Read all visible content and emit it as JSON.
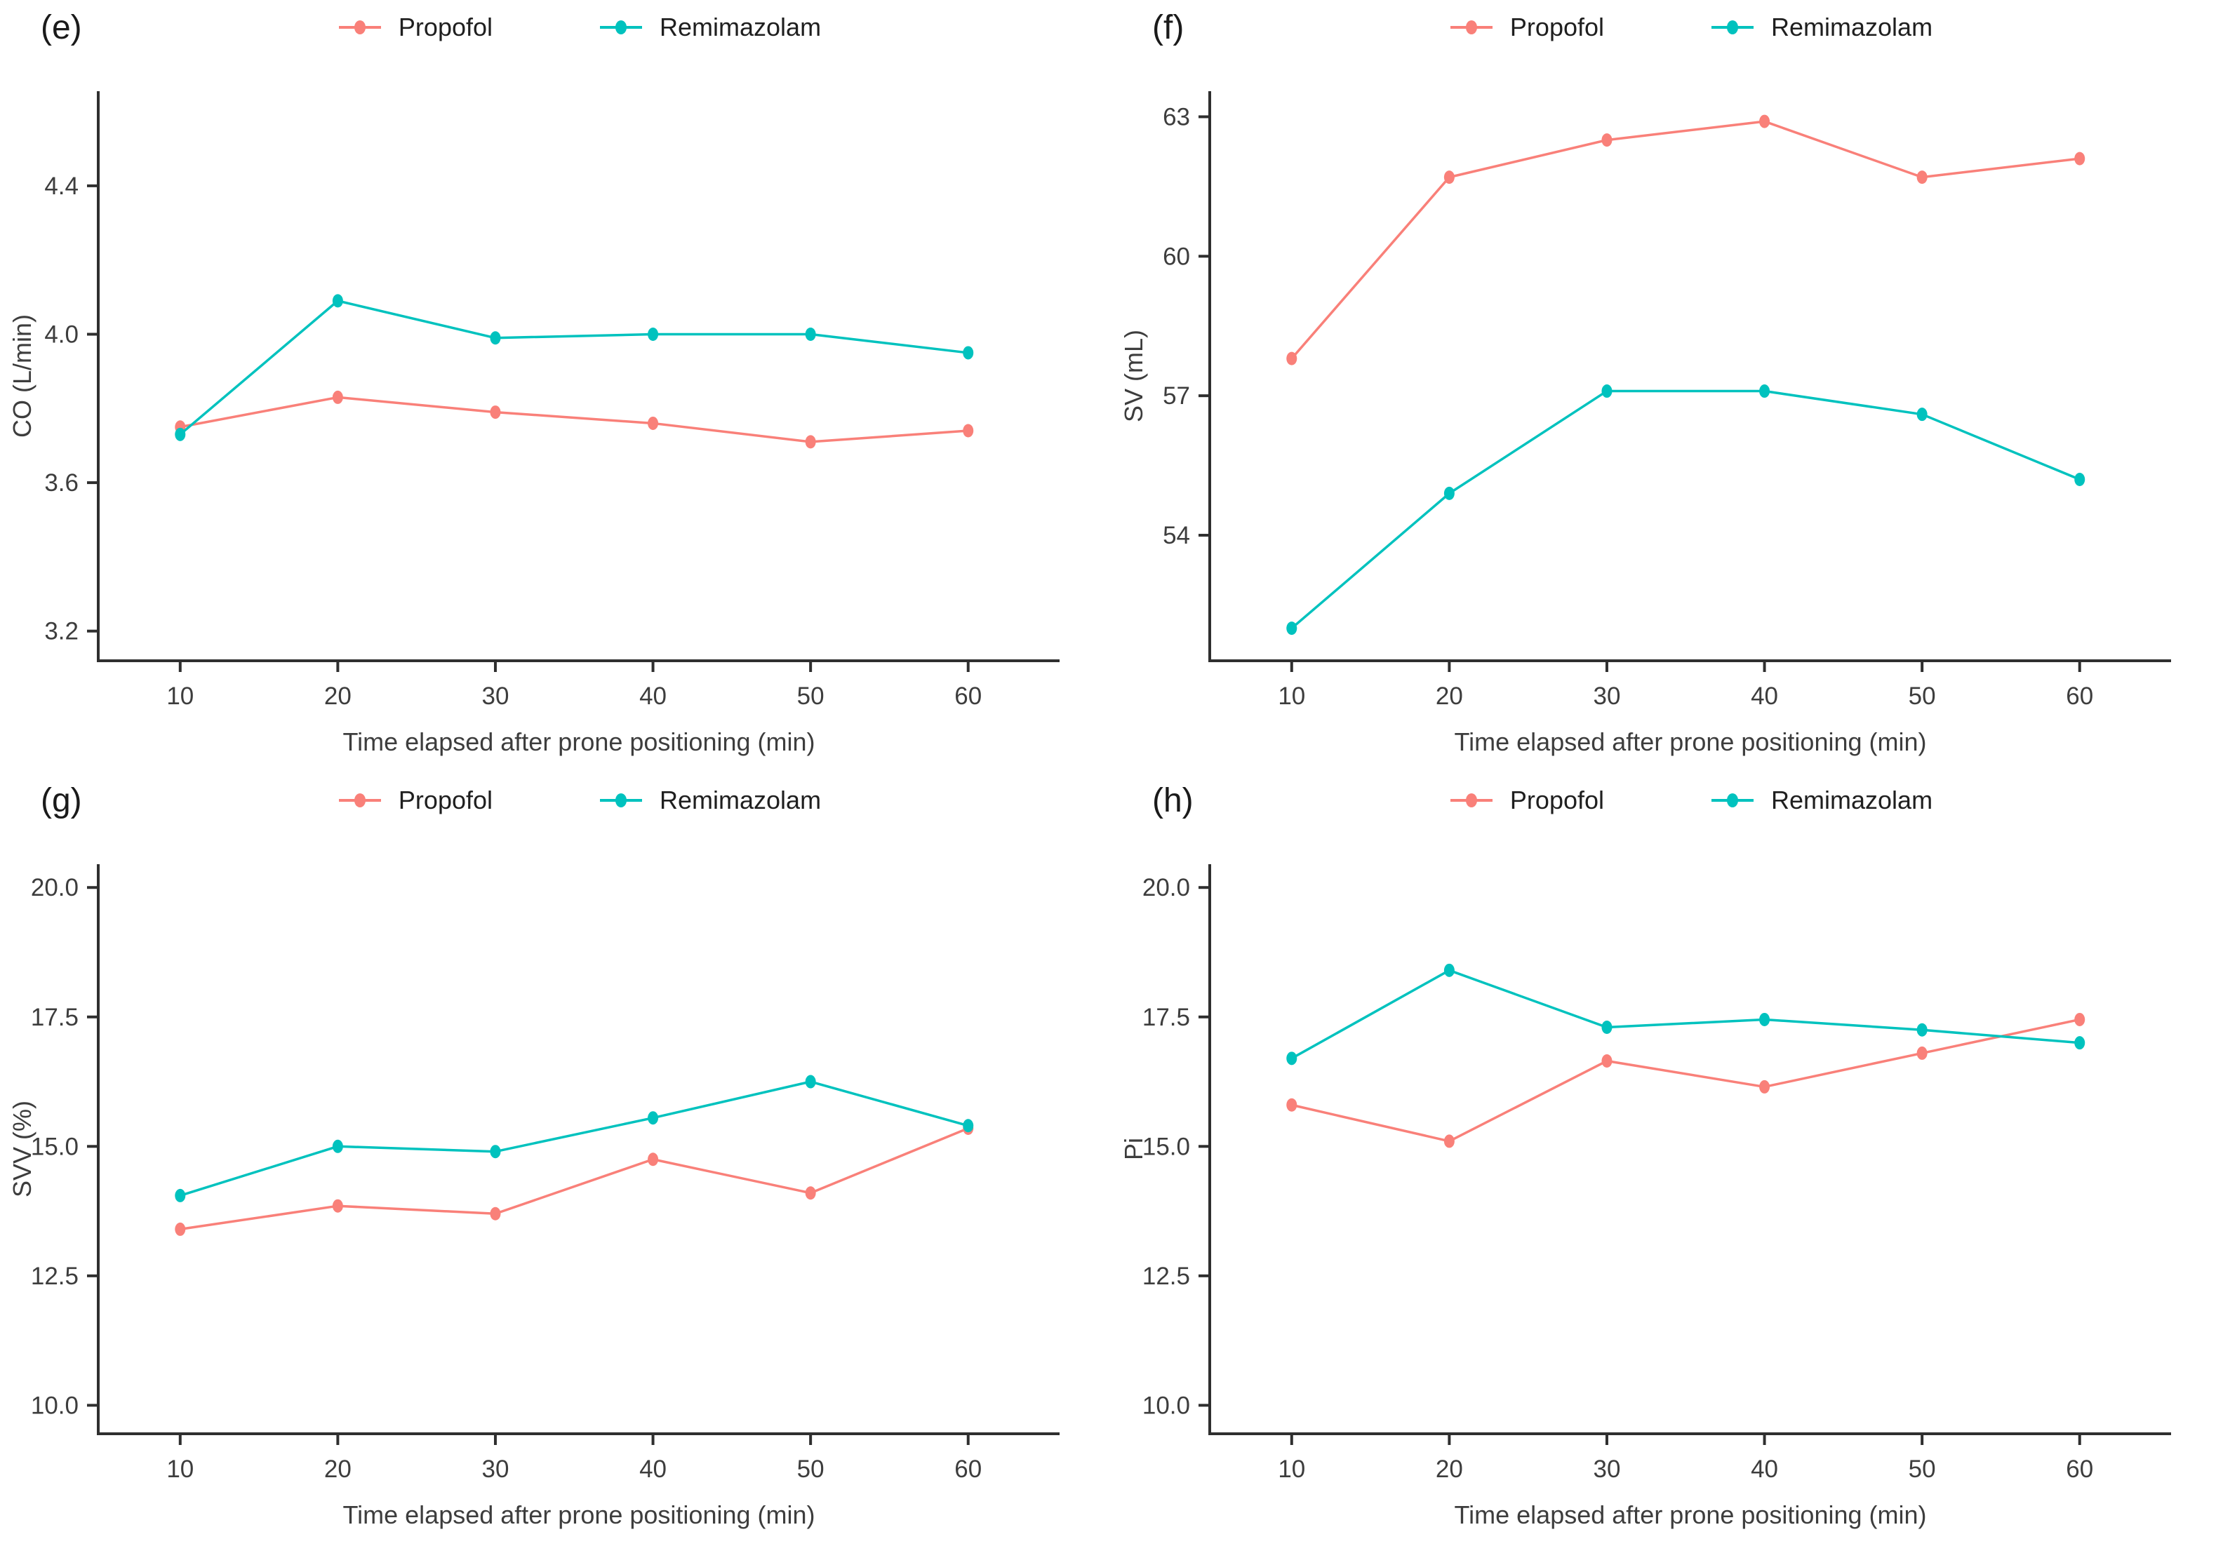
{
  "figure": {
    "xlabel": "Time elapsed after prone positioning (min)",
    "x_ticks": [
      10,
      20,
      30,
      40,
      50,
      60
    ],
    "legend": [
      {
        "name": "Propofol",
        "color": "#F98079"
      },
      {
        "name": "Remimazolam",
        "color": "#00C2BE"
      }
    ],
    "axis_color": "#2f2f2f",
    "text_color": "#3d3d3d"
  },
  "chart_data": [
    {
      "type": "line",
      "panel": "(e)",
      "ylabel": "CO (L/min)",
      "xlabel": "Time elapsed after prone positioning (min)",
      "x": [
        10,
        20,
        30,
        40,
        50,
        60
      ],
      "ylim": [
        3.12,
        4.655
      ],
      "yticks": [
        {
          "value": 3.2,
          "label": "3.2"
        },
        {
          "value": 3.6,
          "label": "3.6"
        },
        {
          "value": 4.0,
          "label": "4.0"
        },
        {
          "value": 4.4,
          "label": "4.4"
        }
      ],
      "legend_position": "top-center",
      "grid": false,
      "series": [
        {
          "name": "Propofol",
          "values": [
            3.75,
            3.83,
            3.79,
            3.76,
            3.71,
            3.74
          ]
        },
        {
          "name": "Remimazolam",
          "values": [
            3.73,
            4.09,
            3.99,
            4.0,
            4.0,
            3.95
          ]
        }
      ]
    },
    {
      "type": "line",
      "panel": "(f)",
      "ylabel": "SV (mL)",
      "xlabel": "Time elapsed after prone positioning (min)",
      "x": [
        10,
        20,
        30,
        40,
        50,
        60
      ],
      "ylim": [
        51.3,
        63.55
      ],
      "yticks": [
        {
          "value": 54,
          "label": "54"
        },
        {
          "value": 57,
          "label": "57"
        },
        {
          "value": 60,
          "label": "60"
        },
        {
          "value": 63,
          "label": "63"
        }
      ],
      "legend_position": "top-center",
      "grid": false,
      "series": [
        {
          "name": "Propofol",
          "values": [
            57.8,
            61.7,
            62.5,
            62.9,
            61.7,
            62.1
          ]
        },
        {
          "name": "Remimazolam",
          "values": [
            52.0,
            54.9,
            57.1,
            57.1,
            56.6,
            55.2
          ]
        }
      ]
    },
    {
      "type": "line",
      "panel": "(g)",
      "ylabel": "SVV (%)",
      "xlabel": "Time elapsed after prone positioning (min)",
      "x": [
        10,
        20,
        30,
        40,
        50,
        60
      ],
      "ylim": [
        9.45,
        20.45
      ],
      "yticks": [
        {
          "value": 10.0,
          "label": "10.0"
        },
        {
          "value": 12.5,
          "label": "12.5"
        },
        {
          "value": 15.0,
          "label": "15.0"
        },
        {
          "value": 17.5,
          "label": "17.5"
        },
        {
          "value": 20.0,
          "label": "20.0"
        }
      ],
      "legend_position": "top-center",
      "grid": false,
      "series": [
        {
          "name": "Propofol",
          "values": [
            13.4,
            13.85,
            13.7,
            14.75,
            14.1,
            15.35
          ]
        },
        {
          "name": "Remimazolam",
          "values": [
            14.05,
            15.0,
            14.9,
            15.55,
            16.25,
            15.4
          ]
        }
      ]
    },
    {
      "type": "line",
      "panel": "(h)",
      "ylabel": "Pi",
      "xlabel": "Time elapsed after prone positioning (min)",
      "x": [
        10,
        20,
        30,
        40,
        50,
        60
      ],
      "ylim": [
        9.45,
        20.45
      ],
      "yticks": [
        {
          "value": 10.0,
          "label": "10.0"
        },
        {
          "value": 12.5,
          "label": "12.5"
        },
        {
          "value": 15.0,
          "label": "15.0"
        },
        {
          "value": 17.5,
          "label": "17.5"
        },
        {
          "value": 20.0,
          "label": "20.0"
        }
      ],
      "legend_position": "top-center",
      "grid": false,
      "series": [
        {
          "name": "Propofol",
          "values": [
            15.8,
            15.1,
            16.65,
            16.15,
            16.8,
            17.45
          ]
        },
        {
          "name": "Remimazolam",
          "values": [
            16.7,
            18.4,
            17.3,
            17.45,
            17.25,
            17.0
          ]
        }
      ]
    }
  ]
}
